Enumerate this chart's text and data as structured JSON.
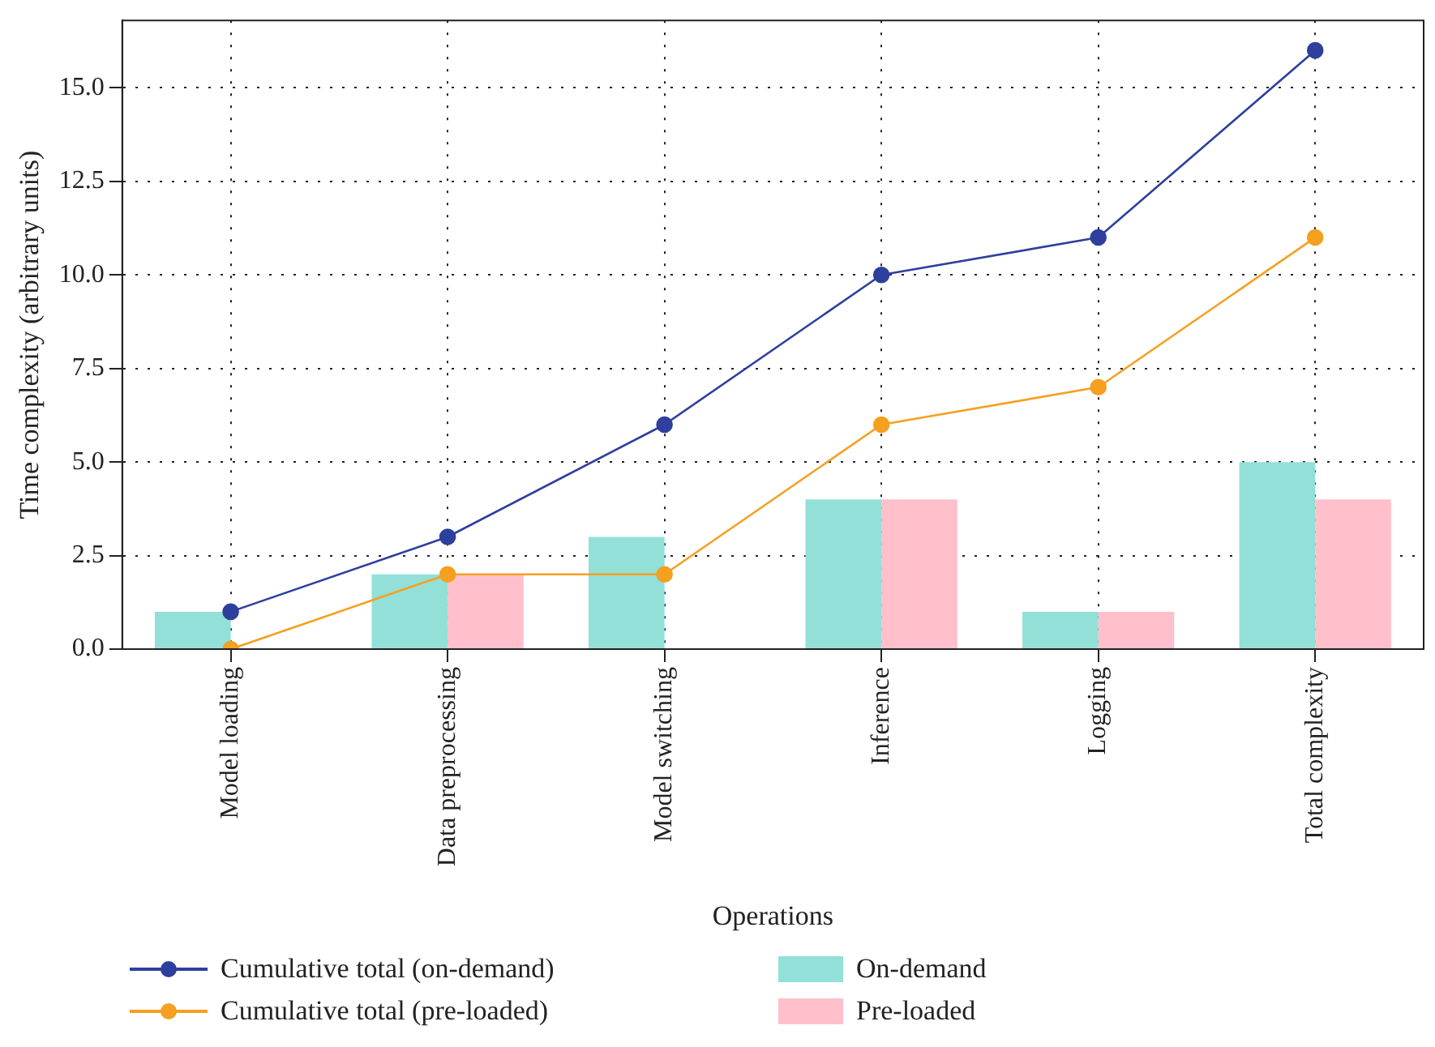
{
  "chart_data": {
    "type": "bar",
    "xlabel": "Operations",
    "ylabel": "Time complexity (arbitrary units)",
    "categories": [
      "Model loading",
      "Data preprocessing",
      "Model switching",
      "Inference",
      "Logging",
      "Total complexity"
    ],
    "series": [
      {
        "name": "Cumulative total (on-demand)",
        "type": "line",
        "color": "#2e3f9e",
        "values": [
          1,
          3,
          6,
          10,
          11,
          16
        ]
      },
      {
        "name": "Cumulative total (pre-loaded)",
        "type": "line",
        "color": "#f5a020",
        "values": [
          0,
          2,
          2,
          6,
          7,
          11
        ]
      },
      {
        "name": "On-demand",
        "color": "#93e0d8",
        "values": [
          1,
          2,
          3,
          4,
          1,
          5
        ]
      },
      {
        "name": "Pre-loaded",
        "color": "#ffc0cb",
        "values": [
          0,
          2,
          0,
          4,
          1,
          4
        ]
      }
    ],
    "ylim": [
      0,
      16.8
    ],
    "yticks": [
      {
        "value": 0,
        "label": "0.0"
      },
      {
        "value": 2.5,
        "label": "2.5"
      },
      {
        "value": 5,
        "label": "5.0"
      },
      {
        "value": 7.5,
        "label": "7.5"
      },
      {
        "value": 10,
        "label": "10.0"
      },
      {
        "value": 12.5,
        "label": "12.5"
      },
      {
        "value": 15,
        "label": "15.0"
      }
    ],
    "grid": true,
    "legend": "bottom",
    "marker": "circle",
    "line_style": "solid"
  }
}
